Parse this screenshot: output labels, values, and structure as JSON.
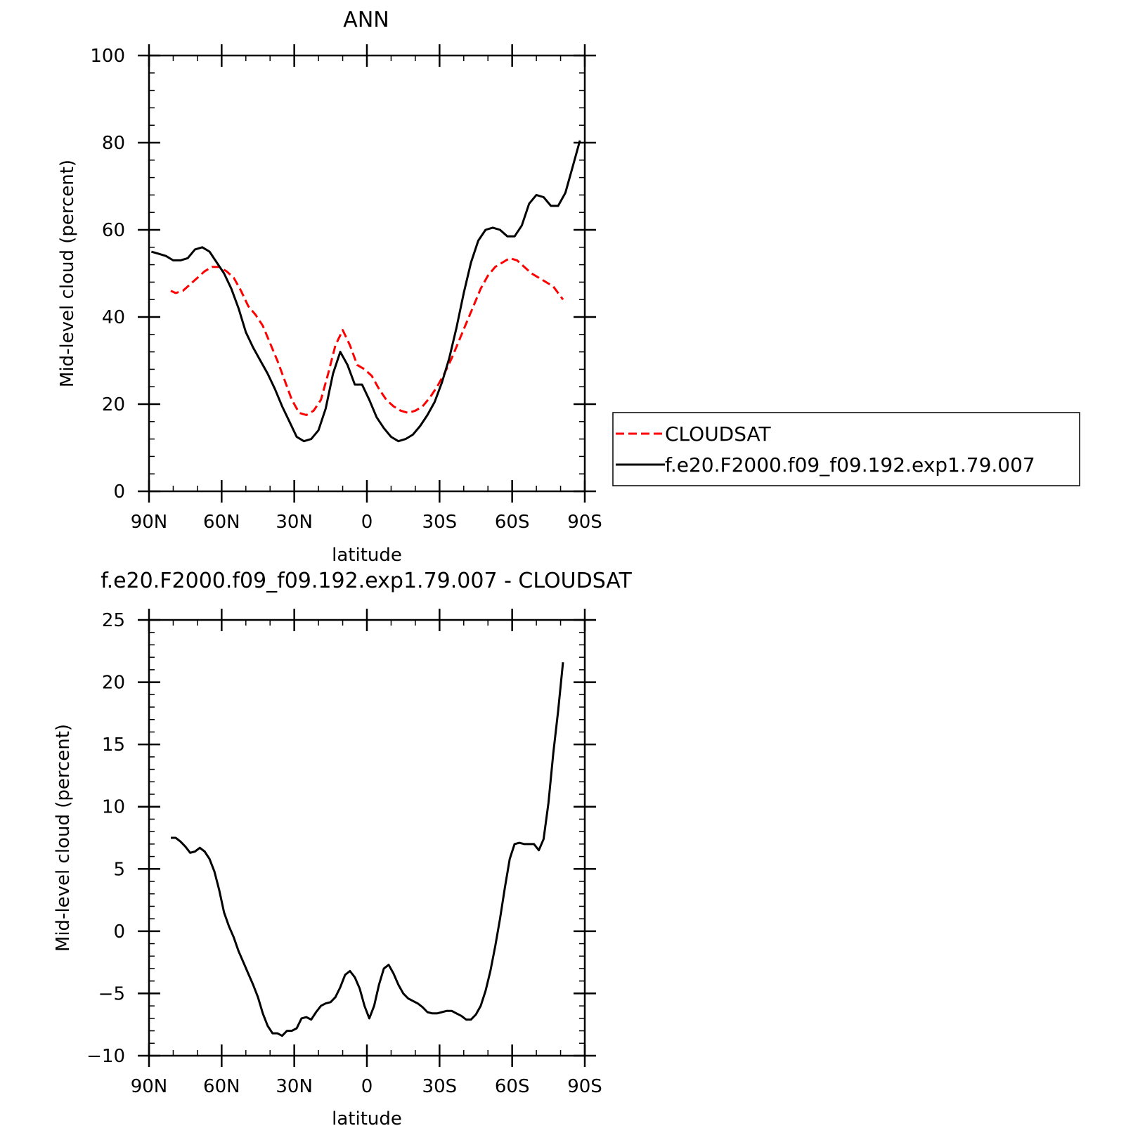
{
  "chart_data": [
    {
      "type": "line",
      "title": "ANN",
      "xlabel": "latitude",
      "ylabel": "Mid-level cloud (percent)",
      "xlim": [
        90,
        -90
      ],
      "ylim": [
        0,
        100
      ],
      "xticks": [
        90,
        60,
        30,
        0,
        -30,
        -60,
        -90
      ],
      "xtick_labels": [
        "90N",
        "60N",
        "30N",
        "0",
        "30S",
        "60S",
        "90S"
      ],
      "yticks": [
        0,
        20,
        40,
        60,
        80,
        100
      ],
      "ytick_labels": [
        "0",
        "20",
        "40",
        "60",
        "80",
        "100"
      ],
      "legend_position": "right",
      "series": [
        {
          "name": "CLOUDSAT",
          "color": "#ff0000",
          "style": "dashed",
          "x": [
            81,
            79,
            76,
            73,
            70,
            67,
            64,
            61,
            58,
            55,
            52,
            49,
            46,
            43,
            40,
            37,
            34,
            31,
            28,
            25,
            22,
            19,
            16,
            13,
            10,
            7,
            4,
            1,
            -2,
            -5,
            -8,
            -11,
            -14,
            -17,
            -20,
            -23,
            -26,
            -29,
            -32,
            -35,
            -38,
            -41,
            -44,
            -47,
            -50,
            -53,
            -56,
            -59,
            -62,
            -65,
            -68,
            -71,
            -74,
            -77,
            -79,
            -81
          ],
          "y": [
            46,
            45.5,
            46,
            47.5,
            49,
            50.5,
            51.5,
            51.5,
            50.5,
            49,
            46,
            42.5,
            40.5,
            38,
            34,
            30,
            25.5,
            21,
            18,
            17.5,
            18.5,
            21,
            27,
            33.5,
            37,
            33.5,
            29,
            28,
            26.5,
            23.5,
            21,
            19.5,
            18.5,
            18,
            18.5,
            19.5,
            21.5,
            24,
            27,
            30.5,
            34.5,
            38.5,
            42.5,
            46.5,
            49.5,
            51.5,
            52.5,
            53.5,
            53,
            51.5,
            50,
            49,
            48,
            47,
            45.5,
            44
          ]
        },
        {
          "name": "f.e20.F2000.f09_f09.192.exp1.79.007",
          "color": "#000000",
          "style": "solid",
          "x": [
            89,
            86,
            83,
            80,
            77,
            74,
            71,
            68,
            65,
            62,
            59,
            56,
            53,
            50,
            47,
            44,
            41,
            38,
            35,
            32,
            29,
            26,
            23,
            20,
            17,
            14,
            11,
            8,
            5,
            2,
            -1,
            -4,
            -7,
            -10,
            -13,
            -16,
            -19,
            -22,
            -25,
            -28,
            -31,
            -34,
            -37,
            -40,
            -43,
            -46,
            -49,
            -52,
            -55,
            -58,
            -61,
            -64,
            -67,
            -70,
            -73,
            -76,
            -79,
            -82,
            -85,
            -88
          ],
          "y": [
            55,
            54.5,
            54,
            53,
            53,
            53.5,
            55.5,
            56,
            55,
            52.5,
            50,
            46.5,
            42,
            36.5,
            33,
            30,
            27,
            23.5,
            19.5,
            16,
            12.5,
            11.5,
            12,
            14,
            19,
            27,
            32,
            29,
            24.5,
            24.5,
            21,
            17,
            14.5,
            12.5,
            11.5,
            12,
            13,
            15,
            17.5,
            20.5,
            25,
            30.5,
            37.5,
            45.5,
            52.5,
            57.5,
            60,
            60.5,
            60,
            58.5,
            58.5,
            61,
            66,
            68,
            67.5,
            65.5,
            65.5,
            68.5,
            74.5,
            80.5
          ]
        }
      ]
    },
    {
      "type": "line",
      "title": "f.e20.F2000.f09_f09.192.exp1.79.007 - CLOUDSAT",
      "xlabel": "latitude",
      "ylabel": "Mid-level cloud (percent)",
      "xlim": [
        90,
        -90
      ],
      "ylim": [
        -10,
        25
      ],
      "xticks": [
        90,
        60,
        30,
        0,
        -30,
        -60,
        -90
      ],
      "xtick_labels": [
        "90N",
        "60N",
        "30N",
        "0",
        "30S",
        "60S",
        "90S"
      ],
      "yticks": [
        -10,
        -5,
        0,
        5,
        10,
        15,
        20,
        25
      ],
      "ytick_labels": [
        "−10",
        "−5",
        "0",
        "5",
        "10",
        "15",
        "20",
        "25"
      ],
      "series": [
        {
          "color": "#000000",
          "style": "solid",
          "x": [
            81,
            79,
            77,
            75,
            73,
            71,
            69,
            67,
            65,
            63,
            61,
            59,
            57,
            55,
            53,
            51,
            49,
            47,
            45,
            43,
            41,
            39,
            37,
            35,
            33,
            31,
            29,
            27,
            25,
            23,
            21,
            19,
            17,
            15,
            13,
            11,
            9,
            7,
            5,
            3,
            1,
            -1,
            -3,
            -5,
            -7,
            -9,
            -11,
            -13,
            -15,
            -17,
            -19,
            -21,
            -23,
            -25,
            -27,
            -29,
            -31,
            -33,
            -35,
            -37,
            -39,
            -41,
            -43,
            -45,
            -47,
            -49,
            -51,
            -53,
            -55,
            -57,
            -59,
            -61,
            -63,
            -65,
            -67,
            -69,
            -71,
            -73,
            -75,
            -77,
            -79,
            -81
          ],
          "y": [
            7.5,
            7.5,
            7.2,
            6.8,
            6.3,
            6.4,
            6.7,
            6.4,
            5.8,
            4.8,
            3.3,
            1.5,
            0.4,
            -0.5,
            -1.6,
            -2.5,
            -3.4,
            -4.3,
            -5.3,
            -6.6,
            -7.6,
            -8.2,
            -8.2,
            -8.4,
            -8,
            -8,
            -7.8,
            -7,
            -6.9,
            -7.1,
            -6.5,
            -6,
            -5.8,
            -5.7,
            -5.3,
            -4.5,
            -3.5,
            -3.2,
            -3.7,
            -4.6,
            -6,
            -7,
            -6,
            -4.3,
            -3,
            -2.7,
            -3.4,
            -4.3,
            -5,
            -5.4,
            -5.6,
            -5.8,
            -6.1,
            -6.5,
            -6.6,
            -6.6,
            -6.5,
            -6.4,
            -6.4,
            -6.6,
            -6.8,
            -7.1,
            -7.1,
            -6.7,
            -6,
            -4.8,
            -3.2,
            -1.2,
            1,
            3.5,
            5.8,
            7,
            7.1,
            7,
            7,
            7,
            6.5,
            7.4,
            10.3,
            14.3,
            17.7,
            21.6
          ]
        }
      ]
    }
  ]
}
